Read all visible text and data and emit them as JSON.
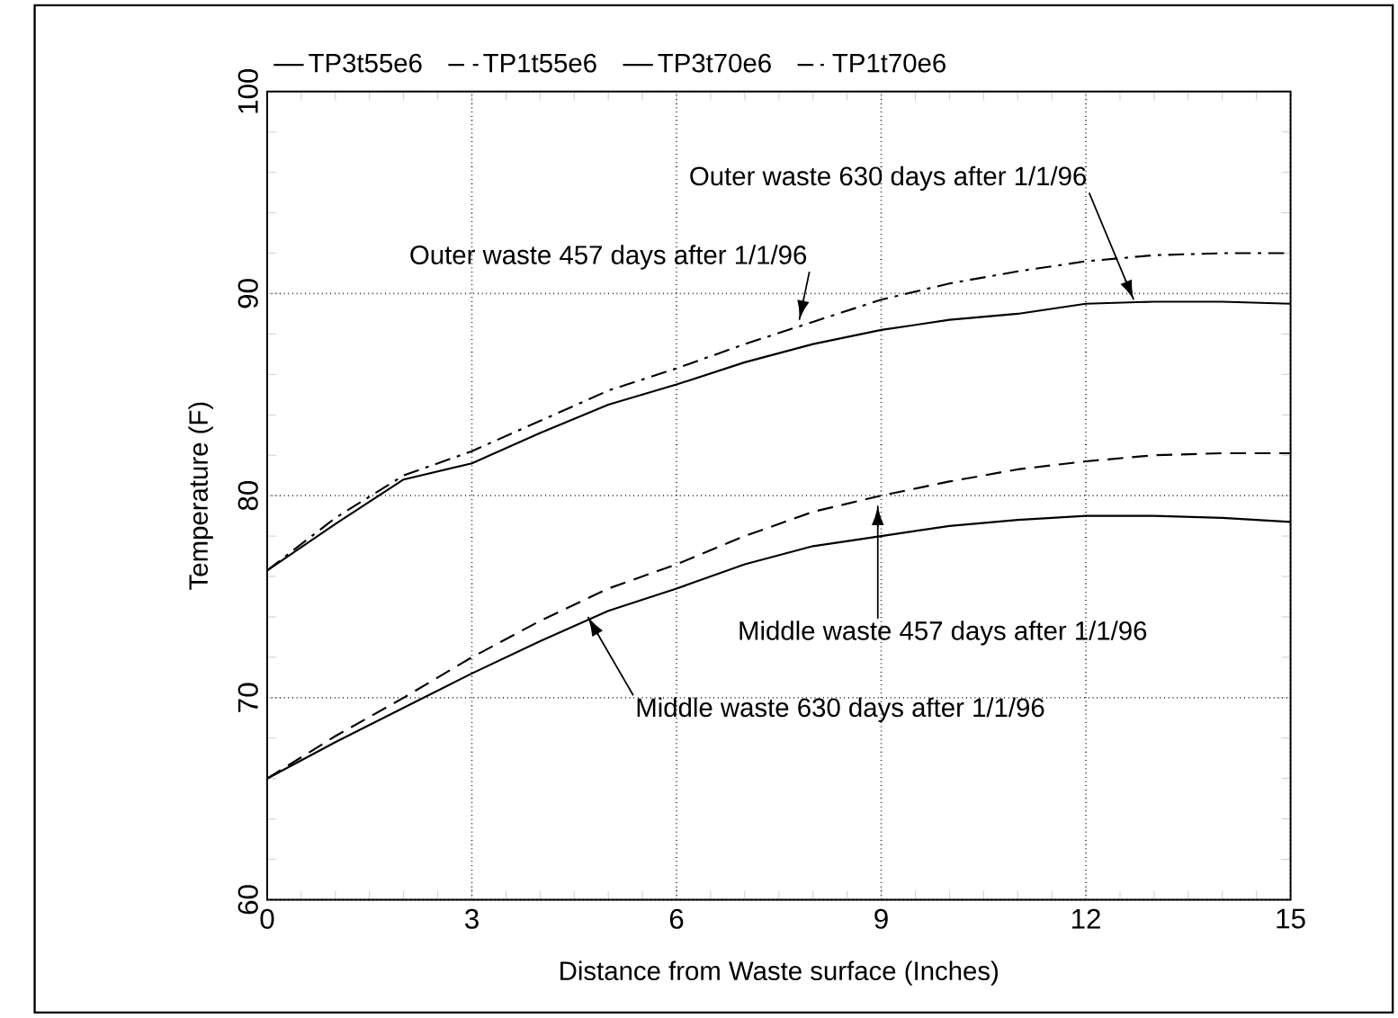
{
  "chart_data": {
    "type": "line",
    "xlabel": "Distance from Waste surface (Inches)",
    "ylabel": "Temperature (F)",
    "x": [
      0,
      1,
      2,
      3,
      4,
      5,
      6,
      7,
      8,
      9,
      10,
      11,
      12,
      13,
      14,
      15
    ],
    "xlim": [
      0,
      15
    ],
    "ylim": [
      60,
      100
    ],
    "xticks": [
      0,
      3,
      6,
      9,
      12,
      15
    ],
    "yticks": [
      60,
      70,
      80,
      90,
      100
    ],
    "grid": true,
    "legend": "top",
    "marker": "none",
    "series": [
      {
        "name": "TP3t55e6",
        "color": "#000000",
        "line_style": "solid",
        "values": [
          66.0,
          67.8,
          69.5,
          71.2,
          72.8,
          74.3,
          75.4,
          76.6,
          77.5,
          78.0,
          78.5,
          78.8,
          79.0,
          79.0,
          78.9,
          78.7
        ]
      },
      {
        "name": "TP1t55e6",
        "color": "#000000",
        "line_style": "dashed",
        "values": [
          66.0,
          68.1,
          70.0,
          72.0,
          73.8,
          75.4,
          76.6,
          78.0,
          79.2,
          80.0,
          80.7,
          81.3,
          81.7,
          82.0,
          82.1,
          82.1
        ]
      },
      {
        "name": "TP3t70e6",
        "color": "#000000",
        "line_style": "solid",
        "values": [
          76.3,
          78.6,
          80.8,
          81.6,
          83.1,
          84.5,
          85.5,
          86.6,
          87.5,
          88.2,
          88.7,
          89.0,
          89.5,
          89.6,
          89.6,
          89.5
        ]
      },
      {
        "name": "TP1t70e6",
        "color": "#000000",
        "line_style": "dashdot",
        "values": [
          76.3,
          78.9,
          81.0,
          82.2,
          83.7,
          85.2,
          86.3,
          87.5,
          88.6,
          89.7,
          90.5,
          91.1,
          91.6,
          91.9,
          92.0,
          92.0
        ]
      }
    ],
    "annotations": [
      {
        "text": "Outer waste 630 days after 1/1/96",
        "x": 12.7,
        "y": 89.7
      },
      {
        "text": "Outer waste 457 days after 1/1/96",
        "x": 7.8,
        "y": 88.7
      },
      {
        "text": "Middle waste 457 days after 1/1/96",
        "x": 8.95,
        "y": 79.5
      },
      {
        "text": "Middle waste 630 days after 1/1/96",
        "x": 4.7,
        "y": 74.0
      }
    ]
  }
}
